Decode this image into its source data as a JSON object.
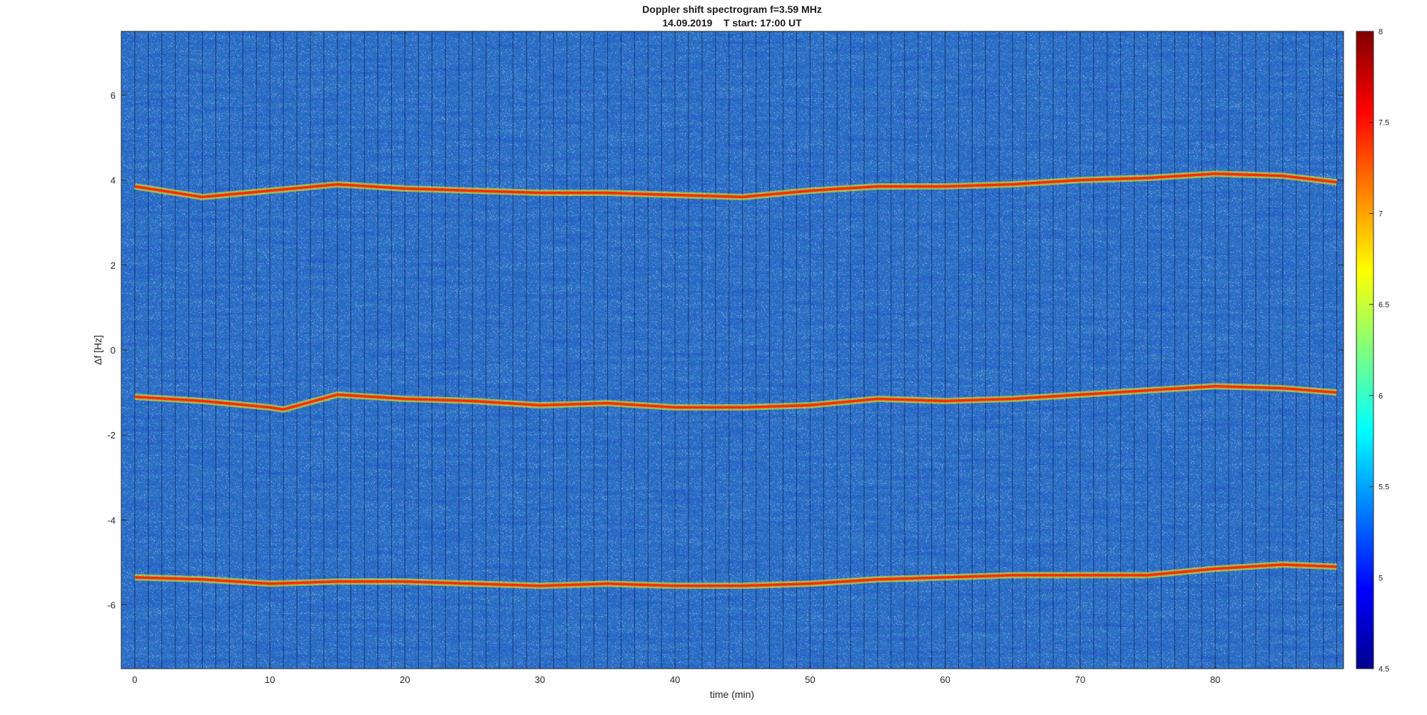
{
  "chart_data": {
    "type": "heatmap",
    "title": "Doppler shift spectrogram f=3.59 MHz",
    "subtitle": "14.09.2019    T start: 17:00 UT",
    "xlabel": "time (min)",
    "ylabel": "Δf [Hz]",
    "xlim": [
      -1,
      89.5
    ],
    "ylim": [
      -7.5,
      7.5
    ],
    "xticks": [
      0,
      10,
      20,
      30,
      40,
      50,
      60,
      70,
      80
    ],
    "yticks": [
      -6,
      -4,
      -2,
      0,
      2,
      4,
      6
    ],
    "colorbar": {
      "colormap": "jet",
      "limits": [
        4.5,
        8
      ],
      "ticks": [
        4.5,
        5,
        5.5,
        6,
        6.5,
        7,
        7.5,
        8
      ]
    },
    "background_level": 5.6,
    "traces": [
      {
        "x": [
          0,
          5,
          10,
          15,
          20,
          25,
          30,
          35,
          40,
          45,
          50,
          55,
          60,
          65,
          70,
          75,
          80,
          85,
          89
        ],
        "y": [
          3.85,
          3.6,
          3.75,
          3.9,
          3.8,
          3.75,
          3.7,
          3.7,
          3.65,
          3.6,
          3.75,
          3.85,
          3.85,
          3.9,
          4.0,
          4.05,
          4.15,
          4.1,
          3.95
        ]
      },
      {
        "x": [
          0,
          5,
          10,
          11,
          15,
          20,
          25,
          30,
          35,
          40,
          45,
          50,
          55,
          60,
          65,
          70,
          75,
          80,
          85,
          89
        ],
        "y": [
          -1.1,
          -1.2,
          -1.35,
          -1.4,
          -1.05,
          -1.15,
          -1.2,
          -1.3,
          -1.25,
          -1.35,
          -1.35,
          -1.3,
          -1.15,
          -1.2,
          -1.15,
          -1.05,
          -0.95,
          -0.85,
          -0.9,
          -1.0
        ]
      },
      {
        "x": [
          0,
          5,
          10,
          15,
          20,
          25,
          30,
          35,
          40,
          45,
          50,
          55,
          60,
          65,
          70,
          75,
          80,
          85,
          89
        ],
        "y": [
          -5.35,
          -5.4,
          -5.5,
          -5.45,
          -5.45,
          -5.5,
          -5.55,
          -5.5,
          -5.55,
          -5.55,
          -5.5,
          -5.4,
          -5.35,
          -5.3,
          -5.3,
          -5.3,
          -5.15,
          -5.05,
          -5.1
        ]
      }
    ]
  }
}
